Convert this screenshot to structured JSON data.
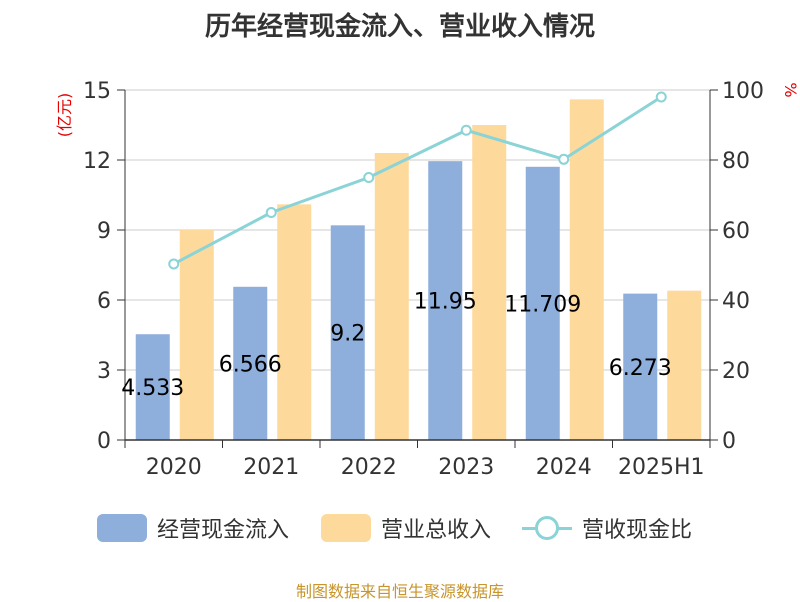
{
  "colors": {
    "bar1": "#8eaedb",
    "bar2": "#fed99c",
    "line": "#8ad3d6",
    "title": "#333333",
    "unit": "#e60000",
    "source": "#c8952b",
    "grid": "#cccccc",
    "axis": "#333333"
  },
  "source_text": "制图数据来自恒生聚源数据库",
  "chart_data": {
    "type": "bar",
    "title": "历年经营现金流入、营业收入情况",
    "categories": [
      "2020",
      "2021",
      "2022",
      "2023",
      "2024",
      "2025H1"
    ],
    "y_left": {
      "unit": "(亿元)",
      "min": 0,
      "max": 15,
      "ticks": [
        "0",
        "3",
        "6",
        "9",
        "12",
        "15"
      ]
    },
    "y_right": {
      "unit": "%",
      "min": 0,
      "max": 100,
      "ticks": [
        "0",
        "20",
        "40",
        "60",
        "80",
        "100"
      ]
    },
    "grid": true,
    "legend_position": "bottom",
    "series": [
      {
        "name": "经营现金流入",
        "kind": "bar",
        "axis": "left",
        "values": [
          4.533,
          6.566,
          9.2,
          11.95,
          11.709,
          6.273
        ],
        "labels": [
          "4.533",
          "6.566",
          "9.2",
          "11.95",
          "11.709",
          "6.273"
        ]
      },
      {
        "name": "营业总收入",
        "kind": "bar",
        "axis": "left",
        "values": [
          9.0,
          10.1,
          12.3,
          13.5,
          14.6,
          6.4
        ]
      },
      {
        "name": "营收现金比",
        "kind": "line",
        "axis": "right",
        "values": [
          50.3,
          65.0,
          75.0,
          88.5,
          80.2,
          98.0
        ]
      }
    ]
  }
}
